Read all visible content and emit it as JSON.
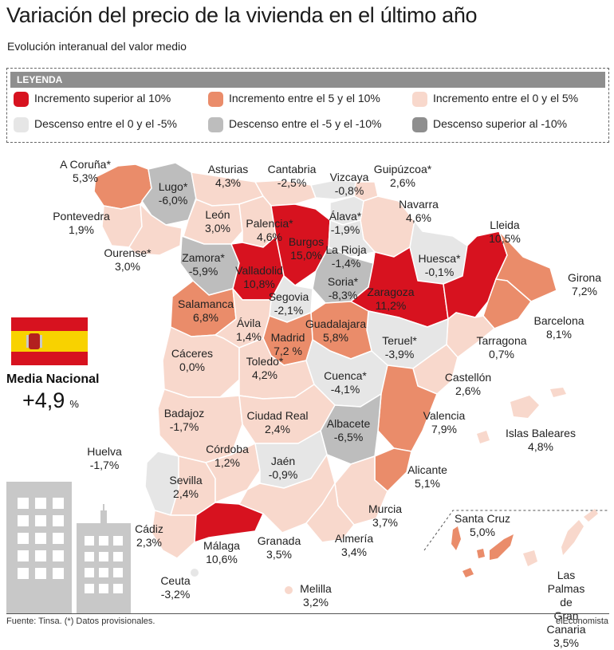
{
  "title": "Variación del precio de la vivienda en el último año",
  "subtitle": "Evolución interanual del valor medio",
  "legend": {
    "heading": "LEYENDA",
    "items": [
      {
        "label": "Incremento superior al 10%",
        "color": "#d7121f"
      },
      {
        "label": "Incremento entre el 5 y el 10%",
        "color": "#ea8c6a"
      },
      {
        "label": "Incremento entre el 0 y el 5%",
        "color": "#f8d8cc"
      },
      {
        "label": "Descenso entre el 0 y el -5%",
        "color": "#e6e6e6"
      },
      {
        "label": "Descenso entre el -5 y el -10%",
        "color": "#bdbdbd"
      },
      {
        "label": "Descenso superior al -10%",
        "color": "#8e8e8e"
      }
    ]
  },
  "national": {
    "label": "Media Nacional",
    "value": "+4,9",
    "unit": "%"
  },
  "provinces": [
    {
      "name": "A Coruña*",
      "value": "5,3%"
    },
    {
      "name": "Lugo*",
      "value": "-6,0%"
    },
    {
      "name": "Asturias",
      "value": "4,3%"
    },
    {
      "name": "Cantabria",
      "value": "-2,5%"
    },
    {
      "name": "Vizcaya",
      "value": "-0,8%"
    },
    {
      "name": "Guipúzcoa*",
      "value": "2,6%"
    },
    {
      "name": "Navarra",
      "value": "4,6%"
    },
    {
      "name": "Pontevedra",
      "value": "1,9%"
    },
    {
      "name": "León",
      "value": "3,0%"
    },
    {
      "name": "Palencia*",
      "value": "4,6%"
    },
    {
      "name": "Álava*",
      "value": "-1,9%"
    },
    {
      "name": "Lleida",
      "value": "10,5%"
    },
    {
      "name": "Ourense*",
      "value": "3,0%"
    },
    {
      "name": "Zamora*",
      "value": "-5,9%"
    },
    {
      "name": "Burgos",
      "value": "15,0%"
    },
    {
      "name": "La Rioja",
      "value": "-1,4%"
    },
    {
      "name": "Huesca*",
      "value": "-0,1%"
    },
    {
      "name": "Valladolid",
      "value": "10,8%"
    },
    {
      "name": "Soria*",
      "value": "-8,3%"
    },
    {
      "name": "Girona",
      "value": "7,2%"
    },
    {
      "name": "Zaragoza",
      "value": "11,2%"
    },
    {
      "name": "Salamanca",
      "value": "6,8%"
    },
    {
      "name": "Segovia",
      "value": "-2,1%"
    },
    {
      "name": "Barcelona",
      "value": "8,1%"
    },
    {
      "name": "Ávila",
      "value": "1,4%"
    },
    {
      "name": "Guadalajara",
      "value": "5,8%"
    },
    {
      "name": "Madrid",
      "value": "7,2 %"
    },
    {
      "name": "Teruel*",
      "value": "-3,9%"
    },
    {
      "name": "Tarragona",
      "value": "0,7%"
    },
    {
      "name": "Cáceres",
      "value": "0,0%"
    },
    {
      "name": "Toledo*",
      "value": "4,2%"
    },
    {
      "name": "Cuenca*",
      "value": "-4,1%"
    },
    {
      "name": "Castellón",
      "value": "2,6%"
    },
    {
      "name": "Badajoz",
      "value": "-1,7%"
    },
    {
      "name": "Ciudad Real",
      "value": "2,4%"
    },
    {
      "name": "Albacete",
      "value": "-6,5%"
    },
    {
      "name": "Valencia",
      "value": "7,9%"
    },
    {
      "name": "Islas Baleares",
      "value": "4,8%"
    },
    {
      "name": "Huelva",
      "value": "-1,7%"
    },
    {
      "name": "Córdoba",
      "value": "1,2%"
    },
    {
      "name": "Jaén",
      "value": "-0,9%"
    },
    {
      "name": "Alicante",
      "value": "5,1%"
    },
    {
      "name": "Sevilla",
      "value": "2,4%"
    },
    {
      "name": "Murcia",
      "value": "3,7%"
    },
    {
      "name": "Santa Cruz",
      "value": "5,0%"
    },
    {
      "name": "Cádiz",
      "value": "2,3%"
    },
    {
      "name": "Málaga",
      "value": "10,6%"
    },
    {
      "name": "Granada",
      "value": "3,5%"
    },
    {
      "name": "Almería",
      "value": "3,4%"
    },
    {
      "name": "Las Palmas de\nGran Canaria",
      "value": "3,5%"
    },
    {
      "name": "Ceuta",
      "value": "-3,2%"
    },
    {
      "name": "Melilla",
      "value": "3,2%"
    }
  ],
  "source": "Fuente: Tinsa. (*) Datos provisionales.",
  "brand": "elEconomista"
}
